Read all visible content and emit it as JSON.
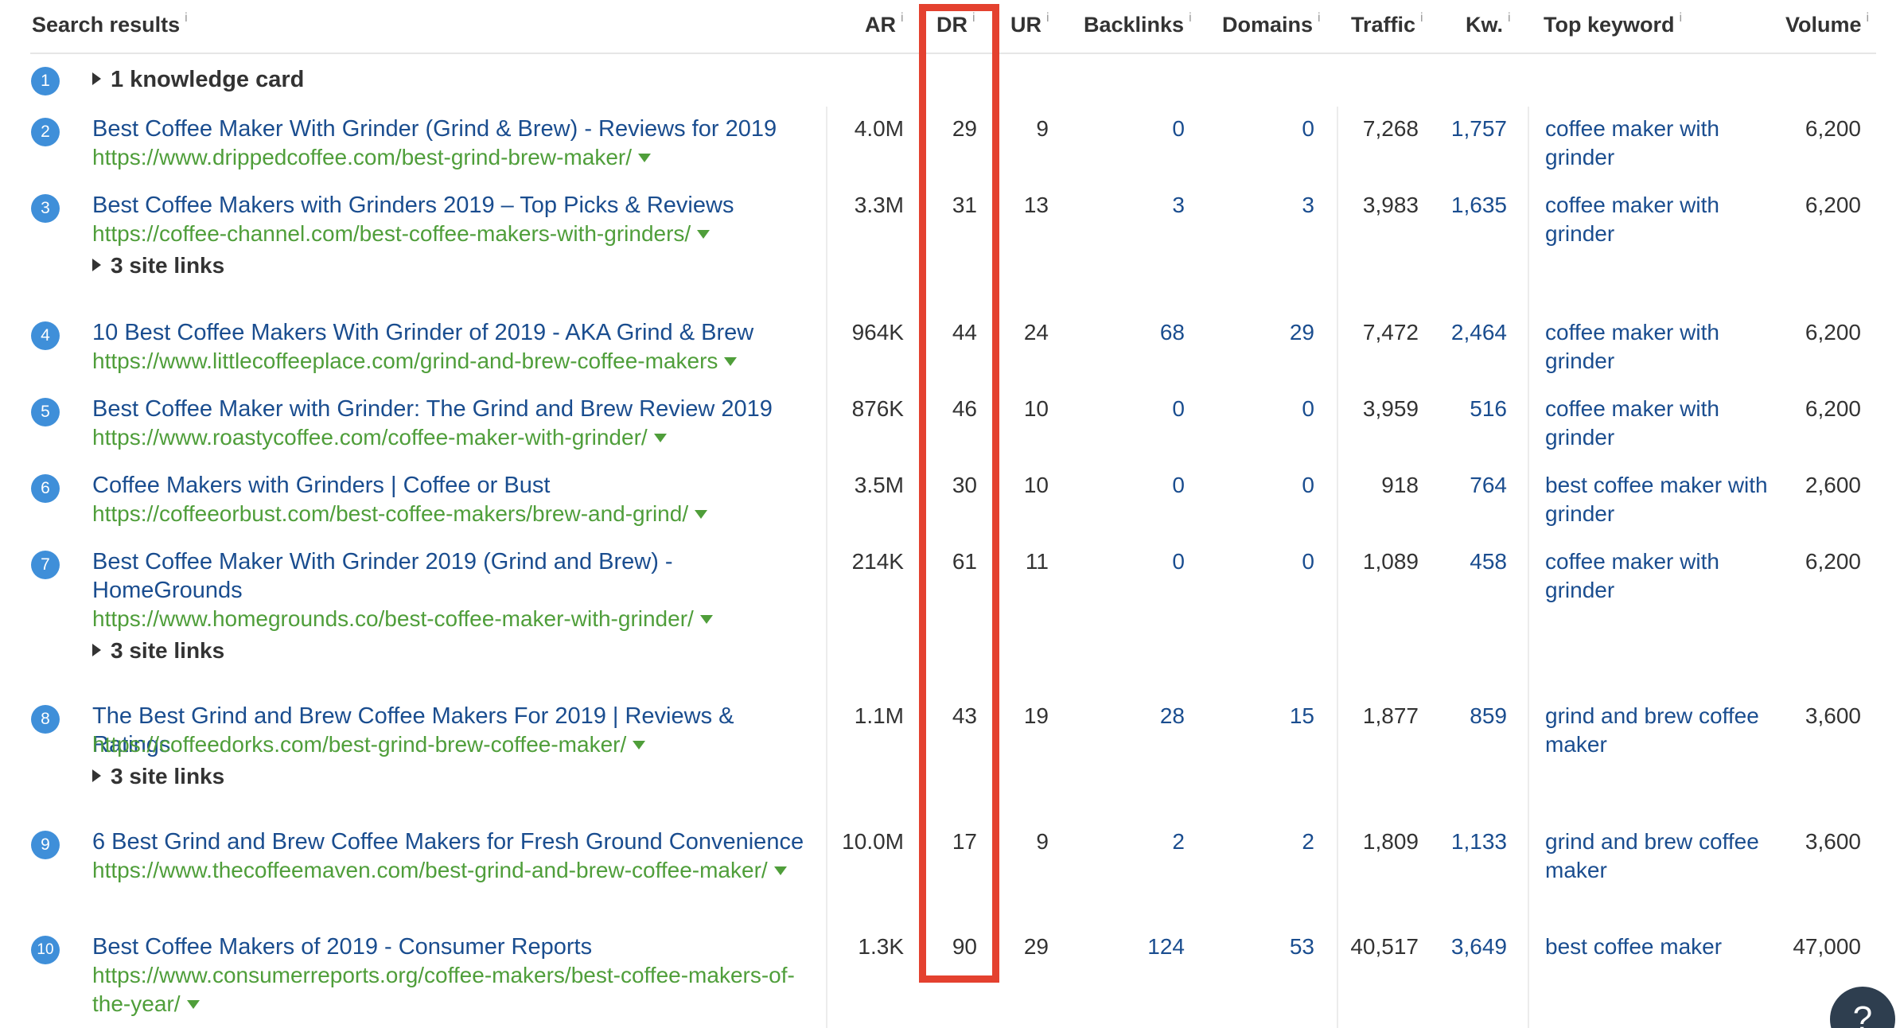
{
  "header": {
    "search_results": "Search results",
    "ar": "AR",
    "dr": "DR",
    "ur": "UR",
    "backlinks": "Backlinks",
    "domains": "Domains",
    "traffic": "Traffic",
    "kw": "Kw.",
    "top_keyword": "Top keyword",
    "volume": "Volume",
    "info": "i"
  },
  "knowledge_card": {
    "position": "1",
    "label": "1 knowledge card"
  },
  "rows": [
    {
      "position": "2",
      "title": "Best Coffee Maker With Grinder (Grind & Brew) - Reviews for 2019",
      "url": "https://www.drippedcoffee.com/best-grind-brew-maker/",
      "sitelinks": "",
      "ar": "4.0M",
      "dr": "29",
      "ur": "9",
      "backlinks": "0",
      "domains": "0",
      "traffic": "7,268",
      "kw": "1,757",
      "top_keyword": "coffee maker with grinder",
      "volume": "6,200"
    },
    {
      "position": "3",
      "title": "Best Coffee Makers with Grinders 2019 – Top Picks & Reviews",
      "url": "https://coffee-channel.com/best-coffee-makers-with-grinders/",
      "sitelinks": "3 site links",
      "ar": "3.3M",
      "dr": "31",
      "ur": "13",
      "backlinks": "3",
      "domains": "3",
      "traffic": "3,983",
      "kw": "1,635",
      "top_keyword": "coffee maker with grinder",
      "volume": "6,200"
    },
    {
      "position": "4",
      "title": "10 Best Coffee Makers With Grinder of 2019 - AKA Grind & Brew",
      "url": "https://www.littlecoffeeplace.com/grind-and-brew-coffee-makers",
      "sitelinks": "",
      "ar": "964K",
      "dr": "44",
      "ur": "24",
      "backlinks": "68",
      "domains": "29",
      "traffic": "7,472",
      "kw": "2,464",
      "top_keyword": "coffee maker with grinder",
      "volume": "6,200"
    },
    {
      "position": "5",
      "title": "Best Coffee Maker with Grinder: The Grind and Brew Review 2019",
      "url": "https://www.roastycoffee.com/coffee-maker-with-grinder/",
      "sitelinks": "",
      "ar": "876K",
      "dr": "46",
      "ur": "10",
      "backlinks": "0",
      "domains": "0",
      "traffic": "3,959",
      "kw": "516",
      "top_keyword": "coffee maker with grinder",
      "volume": "6,200"
    },
    {
      "position": "6",
      "title": "Coffee Makers with Grinders | Coffee or Bust",
      "url": "https://coffeeorbust.com/best-coffee-makers/brew-and-grind/",
      "sitelinks": "",
      "ar": "3.5M",
      "dr": "30",
      "ur": "10",
      "backlinks": "0",
      "domains": "0",
      "traffic": "918",
      "kw": "764",
      "top_keyword": "best coffee maker with grinder",
      "volume": "2,600"
    },
    {
      "position": "7",
      "title": "Best Coffee Maker With Grinder 2019 (Grind and Brew) - HomeGrounds",
      "url": "https://www.homegrounds.co/best-coffee-maker-with-grinder/",
      "sitelinks": "3 site links",
      "ar": "214K",
      "dr": "61",
      "ur": "11",
      "backlinks": "0",
      "domains": "0",
      "traffic": "1,089",
      "kw": "458",
      "top_keyword": "coffee maker with grinder",
      "volume": "6,200"
    },
    {
      "position": "8",
      "title": "The Best Grind and Brew Coffee Makers For 2019 | Reviews & Ratings",
      "url": "https://coffeedorks.com/best-grind-brew-coffee-maker/",
      "sitelinks": "3 site links",
      "ar": "1.1M",
      "dr": "43",
      "ur": "19",
      "backlinks": "28",
      "domains": "15",
      "traffic": "1,877",
      "kw": "859",
      "top_keyword": "grind and brew coffee maker",
      "volume": "3,600"
    },
    {
      "position": "9",
      "title": "6 Best Grind and Brew Coffee Makers for Fresh Ground Convenience",
      "url": "https://www.thecoffeemaven.com/best-grind-and-brew-coffee-maker/",
      "sitelinks": "",
      "ar": "10.0M",
      "dr": "17",
      "ur": "9",
      "backlinks": "2",
      "domains": "2",
      "traffic": "1,809",
      "kw": "1,133",
      "top_keyword": "grind and brew coffee maker",
      "volume": "3,600"
    },
    {
      "position": "10",
      "title": "Best Coffee Makers of 2019 - Consumer Reports",
      "url": "https://www.consumerreports.org/coffee-makers/best-coffee-makers-of-the-year/",
      "sitelinks": "",
      "ar": "1.3K",
      "dr": "90",
      "ur": "29",
      "backlinks": "124",
      "domains": "53",
      "traffic": "40,517",
      "kw": "3,649",
      "top_keyword": "best coffee maker",
      "volume": "47,000"
    }
  ],
  "help": {
    "label": "?"
  },
  "colors": {
    "accent": "#3f8fd9",
    "link": "#1a4d8f",
    "url": "#4f9e3a",
    "highlight": "#e4412f"
  }
}
